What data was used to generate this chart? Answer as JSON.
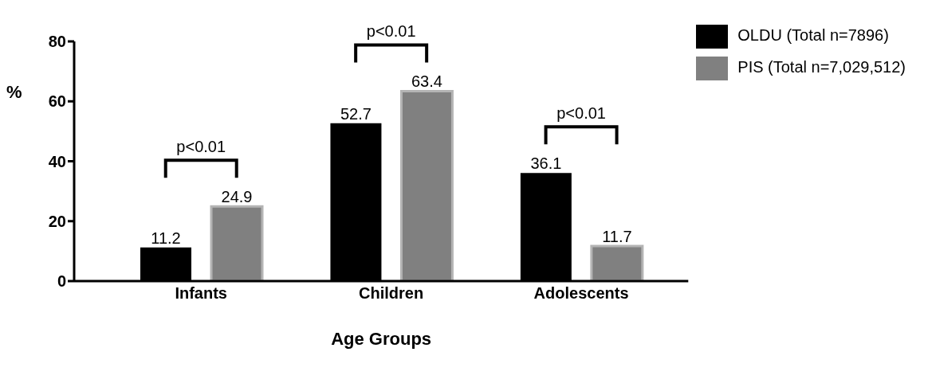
{
  "chart_data": {
    "type": "bar",
    "xlabel": "Age Groups",
    "ylabel": "%",
    "categories": [
      "Infants",
      "Children",
      "Adolescents"
    ],
    "series": [
      {
        "name": "OLDU (Total n=7896)",
        "color": "#000000",
        "values": [
          11.2,
          52.7,
          36.1
        ]
      },
      {
        "name": "PIS (Total n=7,029,512)",
        "color": "#808080",
        "values": [
          24.9,
          63.4,
          11.7
        ]
      }
    ],
    "ylim": [
      0,
      80
    ],
    "yticks": [
      0,
      20,
      40,
      60,
      80
    ],
    "grid": false,
    "legend": "top right",
    "data_labels": true,
    "annotations": [
      "p<0.01",
      "p<0.01",
      "p<0.01"
    ]
  }
}
